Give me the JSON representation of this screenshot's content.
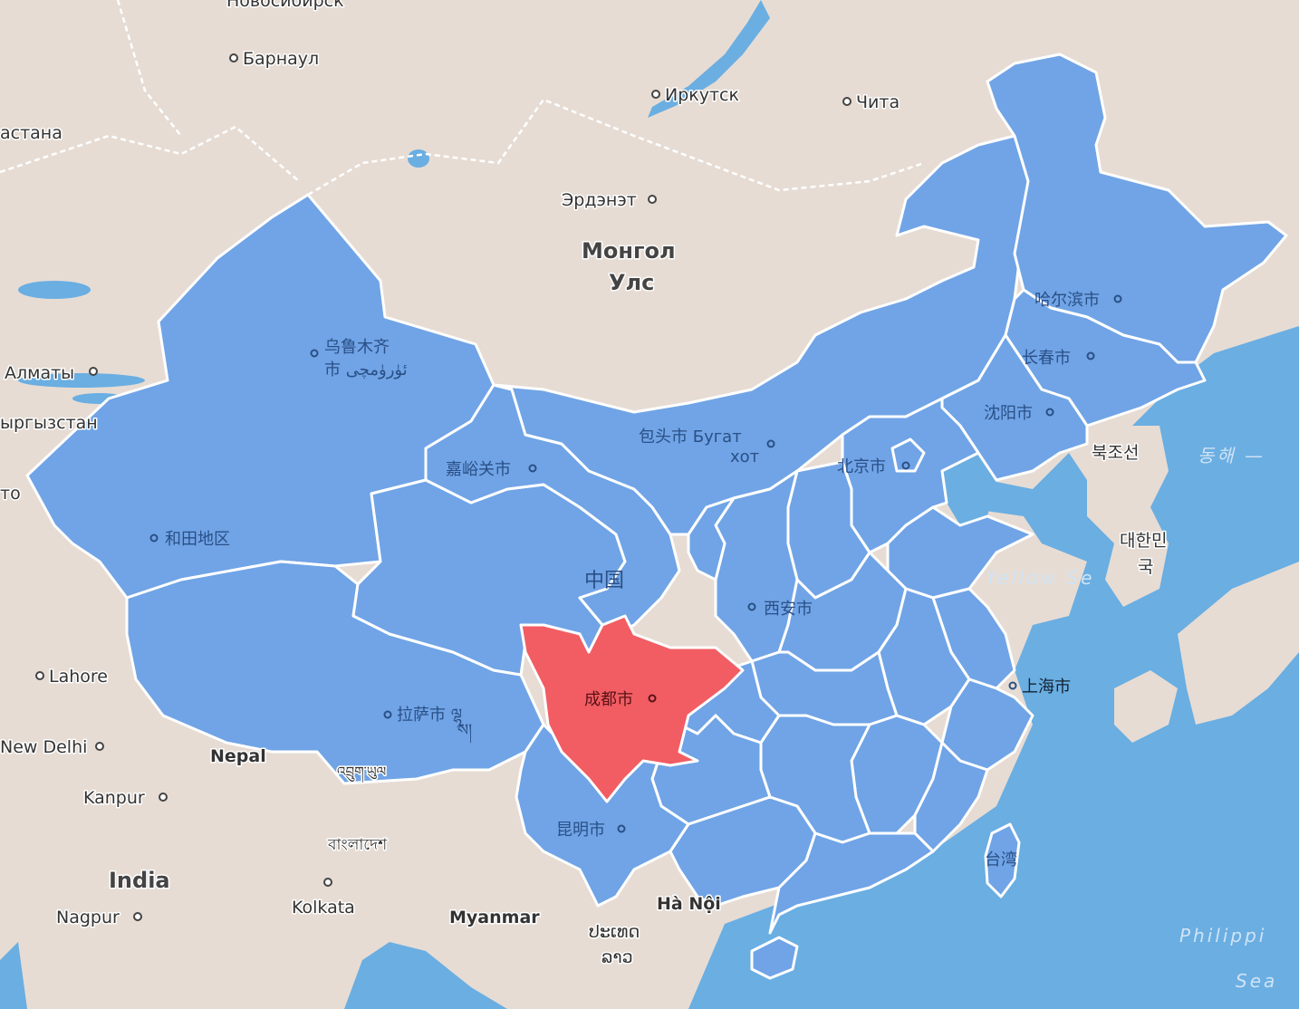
{
  "colors": {
    "land": "#e6dcd4",
    "water": "#6aaee2",
    "region": "#70a4e6",
    "highlight": "#f15d63",
    "border": "#ffffff"
  },
  "labels": {
    "novosibirsk": "Новосибирск",
    "barnaul": "Барнаул",
    "astana": "астана",
    "irkutsk": "Иркутск",
    "chita": "Чита",
    "erdenet": "Эрдэнэт",
    "mongolia_1": "Монгол",
    "mongolia_2": "Улс",
    "almaty": "Алматы",
    "kyrgyzstan": "ыргызстан",
    "tashkent_partial": "то",
    "urumqi_1": "乌鲁木齐",
    "urumqi_2": "市 ئۈرۈمچى",
    "jiayuguan": "嘉峪关市",
    "hotan": "和田地区",
    "baotou": "包头市 Бугат",
    "baotou_2": "хот",
    "beijing": "北京市",
    "shenyang": "沈阳市",
    "changchun": "长春市",
    "harbin": "哈尔滨市",
    "north_korea": "북조선",
    "south_korea_1": "대한민",
    "south_korea_2": "국",
    "east_sea": "동해 —",
    "yellow_sea": "Yellow Se",
    "china": "中国",
    "xian": "西安市",
    "shanghai": "上海市",
    "chengdu": "成都市",
    "lhasa_1": "拉萨市 ལྷ",
    "lhasa_2": "ས།",
    "lahore": "Lahore",
    "new_delhi": "New Delhi",
    "nepal": "Nepal",
    "bhutan": "འབྲུག་ཡུལ",
    "kanpur": "Kanpur",
    "bangladesh": "বাংলাদেশ",
    "india": "India",
    "kolkata": "Kolkata",
    "nagpur": "Nagpur",
    "myanmar": "Myanmar",
    "kunming": "昆明市",
    "hanoi": "Hà Nội",
    "laos_1": "ປະເທດ",
    "laos_2": "ລາວ",
    "taiwan": "台湾",
    "philippine_sea_1": "Philippi",
    "philippine_sea_2": "Sea"
  }
}
